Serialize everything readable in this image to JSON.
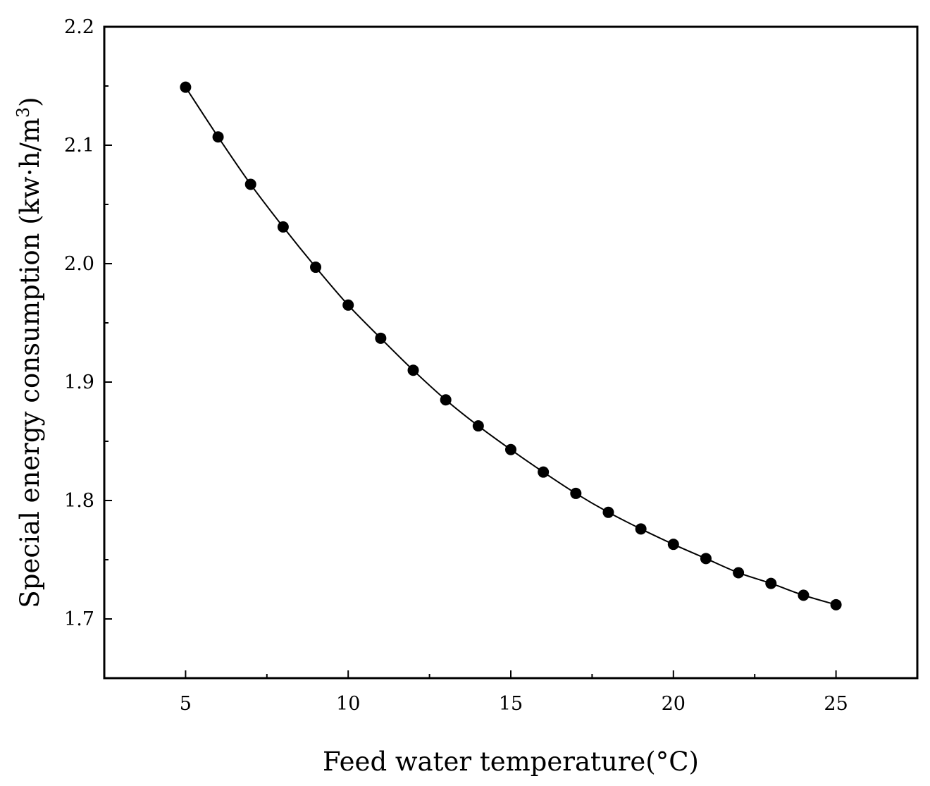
{
  "chart_data": {
    "type": "line",
    "title": "",
    "xlabel": "Feed water temperature(°C)",
    "ylabel": "Special energy consumption (kw·h/m",
    "ylabel_superscript": "3",
    "ylabel_close": ")",
    "xlim": [
      2.5,
      27.5
    ],
    "ylim": [
      1.65,
      2.2
    ],
    "xticks": [
      5,
      10,
      15,
      20,
      25
    ],
    "xtick_labels": [
      "5",
      "10",
      "15",
      "20",
      "25"
    ],
    "yticks": [
      1.7,
      1.8,
      1.9,
      2.0,
      2.1,
      2.2
    ],
    "ytick_labels": [
      "1.7",
      "1.8",
      "1.9",
      "2.0",
      "2.1",
      "2.2"
    ],
    "grid": false,
    "series": [
      {
        "name": "Special energy consumption",
        "marker": "circle",
        "line_style": "solid",
        "color": "#000000",
        "x": [
          5,
          6,
          7,
          8,
          9,
          10,
          11,
          12,
          13,
          14,
          15,
          16,
          17,
          18,
          19,
          20,
          21,
          22,
          23,
          24,
          25
        ],
        "values": [
          2.149,
          2.107,
          2.067,
          2.031,
          1.997,
          1.965,
          1.937,
          1.91,
          1.885,
          1.863,
          1.843,
          1.824,
          1.806,
          1.79,
          1.776,
          1.763,
          1.751,
          1.739,
          1.73,
          1.72,
          1.712
        ]
      }
    ]
  }
}
